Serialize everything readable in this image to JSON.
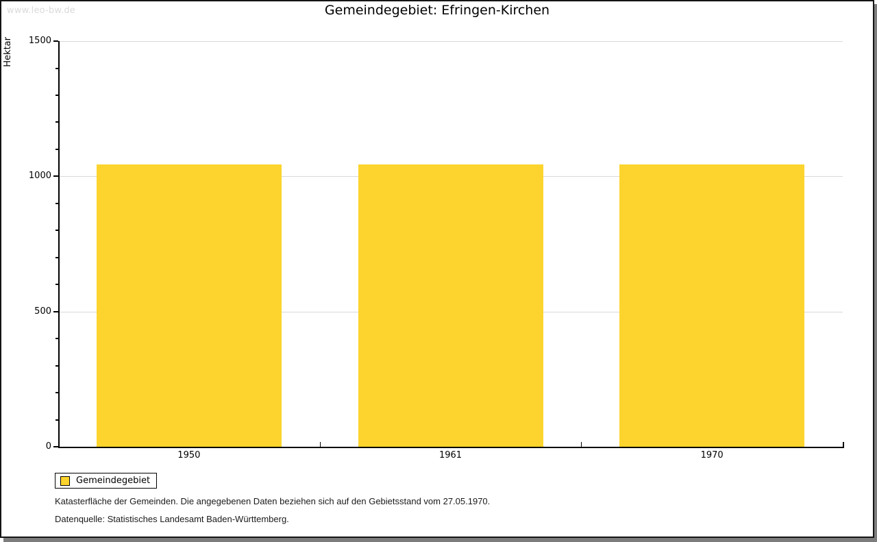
{
  "watermark": "www.leo-bw.de",
  "title": "Gemeindegebiet: Efringen-Kirchen",
  "chart_data": {
    "type": "bar",
    "title": "Gemeindegebiet: Efringen-Kirchen",
    "categories": [
      "1950",
      "1961",
      "1970"
    ],
    "series": [
      {
        "name": "Gemeindegebiet",
        "values": [
          1045,
          1045,
          1045
        ]
      }
    ],
    "xlabel": "",
    "ylabel": "Hektar",
    "ylim": [
      0,
      1500
    ],
    "yticks": [
      0,
      500,
      1000,
      1500
    ],
    "minor_tick_step": 100,
    "grid": "horizontal-major",
    "bar_color": "#fcd42d",
    "axis_color": "#000000",
    "gridline_color": "#d9d9d9",
    "legend_position": "bottom-left"
  },
  "legend": {
    "items": [
      {
        "label": "Gemeindegebiet",
        "color": "#fcd42d"
      }
    ]
  },
  "footnotes": [
    "Katasterfläche der Gemeinden. Die angegebenen Daten beziehen sich auf den Gebietsstand vom 27.05.1970.",
    "Datenquelle: Statistisches Landesamt Baden-Württemberg."
  ]
}
